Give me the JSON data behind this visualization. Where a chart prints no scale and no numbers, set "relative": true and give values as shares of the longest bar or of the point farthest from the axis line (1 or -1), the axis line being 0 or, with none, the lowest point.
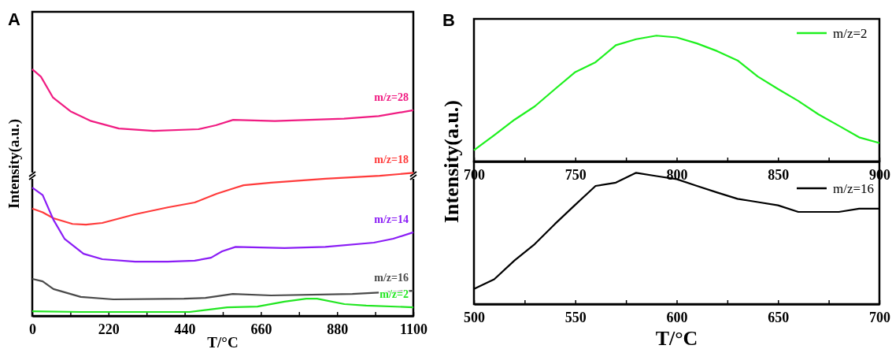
{
  "chart_data": [
    {
      "type": "line",
      "title": "A",
      "xlabel": "T/°C",
      "ylabel": "Intensity(a.u.)",
      "relative": true,
      "legend": false,
      "xlim": [
        0,
        1100
      ],
      "xticks": [
        0,
        {
          "value": 110,
          "label": null
        },
        220,
        {
          "value": 330,
          "label": null
        },
        440,
        {
          "value": 550,
          "label": null
        },
        660,
        {
          "value": 770,
          "label": null
        },
        880,
        {
          "value": 990,
          "label": null
        },
        1100
      ],
      "tick_labels": "x",
      "series": [
        {
          "name": "m/z=28",
          "color": "#f01c82",
          "x": [
            0,
            25,
            60,
            110,
            170,
            250,
            350,
            480,
            530,
            580,
            700,
            900,
            1000,
            1100
          ],
          "values": [
            1.0,
            0.97,
            0.885,
            0.83,
            0.79,
            0.76,
            0.75,
            0.757,
            0.773,
            0.795,
            0.79,
            0.8,
            0.81,
            0.834
          ]
        },
        {
          "name": "m/z=18",
          "color": "#ff3b3b",
          "x": [
            0,
            30,
            61,
            116,
            155,
            202,
            297,
            391,
            469,
            532,
            587,
            610,
            689,
            846,
            1003,
            1100
          ],
          "values": [
            0.435,
            0.42,
            0.396,
            0.373,
            0.37,
            0.377,
            0.412,
            0.44,
            0.46,
            0.495,
            0.52,
            0.53,
            0.54,
            0.556,
            0.568,
            0.58
          ]
        },
        {
          "name": "m/z=14",
          "color": "#8a1cf5",
          "x": [
            0,
            30,
            61,
            93,
            148,
            202,
            297,
            391,
            469,
            516,
            548,
            587,
            728,
            846,
            986,
            1042,
            1100
          ],
          "values": [
            0.52,
            0.49,
            0.39,
            0.313,
            0.252,
            0.23,
            0.22,
            0.22,
            0.224,
            0.236,
            0.262,
            0.28,
            0.275,
            0.28,
            0.297,
            0.313,
            0.339
          ]
        },
        {
          "name": "m/z=16",
          "color": "#4a4a4a",
          "x": [
            0,
            30,
            61,
            140,
            234,
            438,
            500,
            579,
            689,
            924,
            1100
          ],
          "values": [
            0.15,
            0.14,
            0.109,
            0.077,
            0.067,
            0.07,
            0.073,
            0.089,
            0.083,
            0.089,
            0.102
          ]
        },
        {
          "name": "m/z=2",
          "color": "#22e622",
          "x": [
            0,
            140,
            454,
            563,
            650,
            728,
            791,
            822,
            901,
            964,
            1100
          ],
          "values": [
            0.019,
            0.016,
            0.016,
            0.035,
            0.038,
            0.058,
            0.07,
            0.07,
            0.048,
            0.042,
            0.035
          ]
        }
      ]
    },
    {
      "type": "line",
      "title": "B",
      "ylabel": "Intensity(a.u.)",
      "relative": true,
      "legend": "top right",
      "xlim": [
        700,
        900
      ],
      "xticks": [
        700,
        {
          "value": 725,
          "label": null
        },
        750,
        {
          "value": 775,
          "label": null
        },
        800,
        {
          "value": 825,
          "label": null
        },
        850,
        {
          "value": 875,
          "label": null
        },
        900
      ],
      "tick_labels": "x",
      "series": [
        {
          "name": "m/z=2",
          "color": "#1ef01e",
          "x": [
            700,
            710,
            720,
            730,
            740,
            750,
            760,
            770,
            780,
            790,
            800,
            810,
            820,
            830,
            840,
            850,
            860,
            870,
            880,
            890,
            900
          ],
          "values": [
            0.09,
            0.209,
            0.332,
            0.438,
            0.576,
            0.711,
            0.789,
            0.924,
            0.972,
            1.0,
            0.986,
            0.938,
            0.877,
            0.803,
            0.675,
            0.576,
            0.481,
            0.374,
            0.284,
            0.192,
            0.147
          ]
        }
      ]
    },
    {
      "type": "line",
      "xlabel": "T/°C",
      "relative": true,
      "legend": "top right",
      "xlim": [
        500,
        700
      ],
      "xticks": [
        500,
        {
          "value": 525,
          "label": null
        },
        550,
        {
          "value": 575,
          "label": null
        },
        600,
        {
          "value": 625,
          "label": null
        },
        650,
        {
          "value": 675,
          "label": null
        },
        700
      ],
      "tick_labels": "x",
      "series": [
        {
          "name": "m/z=16",
          "color": "#000000",
          "x": [
            500,
            510,
            520,
            530,
            540,
            550,
            560,
            570,
            580,
            590,
            600,
            610,
            620,
            630,
            640,
            650,
            660,
            670,
            680,
            690,
            700
          ],
          "values": [
            0.116,
            0.189,
            0.332,
            0.457,
            0.611,
            0.757,
            0.9,
            0.925,
            1.0,
            0.975,
            0.952,
            0.9,
            0.85,
            0.802,
            0.777,
            0.752,
            0.702,
            0.702,
            0.702,
            0.727,
            0.727
          ]
        }
      ]
    }
  ]
}
